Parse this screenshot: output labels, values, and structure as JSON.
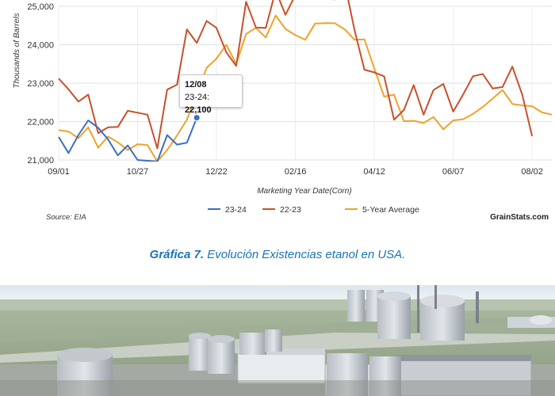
{
  "chart_data": {
    "type": "line",
    "ylabel": "Thousands of Barrels",
    "xlabel": "Marketing Year Date(Corn)",
    "ylim": [
      21000,
      25000
    ],
    "y_ticks": [
      "21,000",
      "22,000",
      "23,000",
      "24,000",
      "25,000"
    ],
    "y_tick_values": [
      21000,
      22000,
      23000,
      24000,
      25000
    ],
    "x_ticks": [
      "09/01",
      "10/27",
      "12/22",
      "02/16",
      "04/12",
      "06/07",
      "08/02"
    ],
    "grid": true,
    "legend_position": "bottom",
    "series": [
      {
        "name": "23-24",
        "color": "#3a6ec6",
        "values": [
          21600,
          21180,
          21650,
          22030,
          21840,
          21540,
          21120,
          21380,
          21000,
          20980,
          20960,
          21650,
          21400,
          21450,
          22100
        ]
      },
      {
        "name": "22-23",
        "color": "#c9502b",
        "values": [
          23120,
          22840,
          22520,
          22700,
          21700,
          21850,
          21860,
          22280,
          22230,
          22180,
          21300,
          22830,
          22960,
          24400,
          24050,
          24620,
          24440,
          23800,
          23450,
          25120,
          24450,
          24440,
          25410,
          24780,
          25300,
          25500,
          25500,
          25200,
          25180,
          25600,
          24380,
          23350,
          23280,
          23180,
          22050,
          22300,
          22950,
          22180,
          22820,
          22980,
          22260,
          22700,
          23180,
          23240,
          22860,
          22900,
          23430,
          22700,
          21620
        ]
      },
      {
        "name": "5-Year Average",
        "color": "#f0a22a",
        "values": [
          21780,
          21740,
          21570,
          21850,
          21320,
          21610,
          21460,
          21260,
          21410,
          21390,
          20960,
          21260,
          21640,
          22050,
          22700,
          23400,
          23640,
          24000,
          23500,
          24280,
          24440,
          24190,
          24760,
          24410,
          24250,
          24130,
          24550,
          24560,
          24560,
          24400,
          24130,
          24140,
          23380,
          22650,
          22700,
          22010,
          22020,
          21960,
          22120,
          21800,
          22030,
          22060,
          22200,
          22380,
          22600,
          22820,
          22460,
          22420,
          22400,
          22240,
          22180
        ]
      }
    ],
    "tooltip": {
      "date": "12/08",
      "series": "23-24",
      "value": "22,100",
      "series_label": "23-24:"
    },
    "source": "Source: EIA",
    "brand": "GrainStats.com"
  },
  "caption": {
    "strong": "Gráfica 7.",
    "text": " Evolución Existencias etanol en USA."
  }
}
